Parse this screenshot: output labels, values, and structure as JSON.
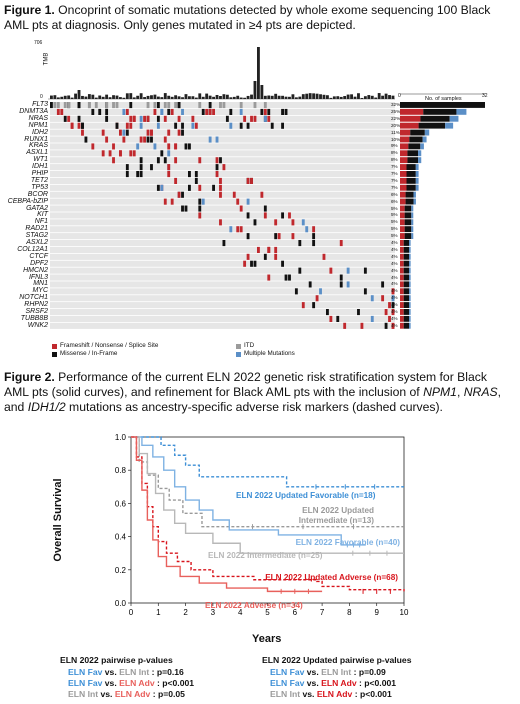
{
  "figure1": {
    "caption_bold": "Figure 1.",
    "caption_text": " Oncoprint of somatic mutations detected by whole exome sequencing 100 Black AML pts at diagnosis. Only genes mutated in ≥4 pts are depicted.",
    "tmb_label": "TMB",
    "tmb_max": "706",
    "tmb_min": "0",
    "samples_axis_label": "No. of samples",
    "samples_axis_min": "0",
    "samples_axis_max": "32",
    "genes": [
      "FLT3",
      "DNMT3A",
      "NRAS",
      "NPM1",
      "IDH2",
      "RUNX1",
      "KRAS",
      "ASXL1",
      "WT1",
      "IDH1",
      "PHIP",
      "TET2",
      "TP53",
      "BCOR",
      "CEBPA-bZIP",
      "GATA2",
      "KIT",
      "NF1",
      "RAD21",
      "STAG2",
      "ASXL2",
      "COL12A1",
      "CTCF",
      "DPF2",
      "HMCN2",
      "IFNL3",
      "MN1",
      "MYC",
      "NOTCH1",
      "RHPN2",
      "SRSF2",
      "TUBB8B",
      "WNK2"
    ],
    "percents": [
      "32%",
      "25%",
      "22%",
      "20%",
      "11%",
      "10%",
      "9%",
      "8%",
      "8%",
      "7%",
      "7%",
      "7%",
      "7%",
      "6%",
      "6%",
      "5%",
      "5%",
      "5%",
      "5%",
      "5%",
      "4%",
      "4%",
      "4%",
      "4%",
      "4%",
      "4%",
      "4%",
      "4%",
      "4%",
      "4%",
      "4%",
      "4%",
      "4%"
    ],
    "legend": [
      {
        "label": "Frameshift / Nonsense / Splice Site",
        "color": "#c0282d"
      },
      {
        "label": "ITD",
        "color": "#9b9b9b"
      },
      {
        "label": "Missense / In-Frame",
        "color": "#111111"
      },
      {
        "label": "Multiple Mutations",
        "color": "#5b8fc7"
      }
    ]
  },
  "figure2": {
    "caption_bold": "Figure 2.",
    "caption_parts": [
      {
        "t": " Performance of the current ELN 2022 genetic risk stratification system for Black AML pts (solid curves), and refinement for Black AML pts with the inclusion of ",
        "i": false
      },
      {
        "t": "NPM1",
        "i": true
      },
      {
        "t": ", ",
        "i": false
      },
      {
        "t": "NRAS",
        "i": true
      },
      {
        "t": ", and ",
        "i": false
      },
      {
        "t": "IDH1/2",
        "i": true
      },
      {
        "t": " mutations as ancestry-specific adverse risk markers (dashed curves).",
        "i": false
      }
    ]
  },
  "chart_data": {
    "type": "line",
    "xlabel": "Years",
    "ylabel": "Overall Survival",
    "xlim": [
      0,
      10
    ],
    "ylim": [
      0,
      1.0
    ],
    "x_ticks": [
      "0",
      "1",
      "2",
      "3",
      "4",
      "5",
      "6",
      "7",
      "8",
      "9",
      "10"
    ],
    "y_ticks": [
      "0.0",
      "0.2",
      "0.4",
      "0.6",
      "0.8",
      "1.0"
    ],
    "series": [
      {
        "name": "ELN 2022 Updated Favorable (n=18)",
        "color": "#3d8fd6",
        "dashed": true,
        "points": [
          [
            0,
            1.0
          ],
          [
            0.8,
            1.0
          ],
          [
            1.1,
            0.95
          ],
          [
            1.6,
            0.89
          ],
          [
            2.0,
            0.83
          ],
          [
            2.5,
            0.76
          ],
          [
            5.5,
            0.76
          ],
          [
            5.7,
            0.7
          ],
          [
            10,
            0.7
          ]
        ]
      },
      {
        "name": "ELN 2022 Updated Intermediate (n=13)",
        "color": "#9a9a9a",
        "dashed": true,
        "points": [
          [
            0,
            1.0
          ],
          [
            0.3,
            0.85
          ],
          [
            0.6,
            0.77
          ],
          [
            1.0,
            0.69
          ],
          [
            1.4,
            0.62
          ],
          [
            1.9,
            0.54
          ],
          [
            2.6,
            0.46
          ],
          [
            10,
            0.46
          ]
        ]
      },
      {
        "name": "ELN 2022 Favorable (n=40)",
        "color": "#7fb2e3",
        "dashed": false,
        "points": [
          [
            0,
            1.0
          ],
          [
            0.4,
            0.95
          ],
          [
            0.8,
            0.88
          ],
          [
            1.2,
            0.8
          ],
          [
            1.6,
            0.7
          ],
          [
            2.0,
            0.62
          ],
          [
            2.5,
            0.56
          ],
          [
            3.0,
            0.5
          ],
          [
            3.6,
            0.44
          ],
          [
            5.0,
            0.44
          ],
          [
            5.4,
            0.41
          ],
          [
            7.5,
            0.41
          ],
          [
            7.7,
            0.35
          ],
          [
            8.6,
            0.35
          ]
        ]
      },
      {
        "name": "ELN 2022 Intermediate (n=25)",
        "color": "#b8b8b8",
        "dashed": false,
        "points": [
          [
            0,
            1.0
          ],
          [
            0.3,
            0.9
          ],
          [
            0.6,
            0.78
          ],
          [
            0.9,
            0.66
          ],
          [
            1.2,
            0.56
          ],
          [
            1.6,
            0.48
          ],
          [
            2.0,
            0.42
          ],
          [
            3.0,
            0.36
          ],
          [
            4.0,
            0.3
          ],
          [
            7.5,
            0.3
          ],
          [
            10,
            0.3
          ]
        ]
      },
      {
        "name": "ELN 2022 Updated Adverse (n=68)",
        "color": "#d8141c",
        "dashed": true,
        "points": [
          [
            0,
            1.0
          ],
          [
            0.2,
            0.88
          ],
          [
            0.4,
            0.72
          ],
          [
            0.6,
            0.58
          ],
          [
            0.8,
            0.46
          ],
          [
            1.0,
            0.37
          ],
          [
            1.3,
            0.3
          ],
          [
            1.7,
            0.25
          ],
          [
            2.2,
            0.2
          ],
          [
            3.0,
            0.16
          ],
          [
            4.5,
            0.14
          ],
          [
            6.8,
            0.13
          ],
          [
            7.0,
            0.1
          ],
          [
            8.0,
            0.08
          ],
          [
            10,
            0.07
          ]
        ]
      },
      {
        "name": "ELN 2022 Adverse (n=34)",
        "color": "#e8605c",
        "dashed": false,
        "points": [
          [
            0,
            1.0
          ],
          [
            0.2,
            0.86
          ],
          [
            0.4,
            0.68
          ],
          [
            0.6,
            0.5
          ],
          [
            0.8,
            0.38
          ],
          [
            1.0,
            0.28
          ],
          [
            1.3,
            0.22
          ],
          [
            1.8,
            0.16
          ],
          [
            2.5,
            0.12
          ],
          [
            3.5,
            0.09
          ],
          [
            5.0,
            0.07
          ],
          [
            7.0,
            0.07
          ]
        ]
      }
    ]
  },
  "pvalues_left": {
    "title": "ELN 2022 pairwise p-values",
    "rows": [
      {
        "a": "ELN Fav",
        "ac": "#3d8fd6",
        "b": "ELN Int",
        "bc": "#9a9a9a",
        "p": ": p=0.16"
      },
      {
        "a": "ELN Fav",
        "ac": "#3d8fd6",
        "b": "ELN Adv",
        "bc": "#e8605c",
        "p": ": p<0.001"
      },
      {
        "a": "ELN Int",
        "ac": "#9a9a9a",
        "b": "ELN Adv",
        "bc": "#e8605c",
        "p": ": p=0.05"
      }
    ]
  },
  "pvalues_right": {
    "title": "ELN 2022 Updated pairwise p-values",
    "rows": [
      {
        "a": "ELN Fav",
        "ac": "#3d8fd6",
        "b": "ELN Int",
        "bc": "#9a9a9a",
        "p": ": p=0.09"
      },
      {
        "a": "ELN Fav",
        "ac": "#3d8fd6",
        "b": "ELN Adv",
        "bc": "#d8141c",
        "p": ": p<0.001"
      },
      {
        "a": "ELN Int",
        "ac": "#9a9a9a",
        "b": "ELN Adv",
        "bc": "#d8141c",
        "p": ": p<0.001"
      }
    ]
  },
  "vs_word": " vs. "
}
